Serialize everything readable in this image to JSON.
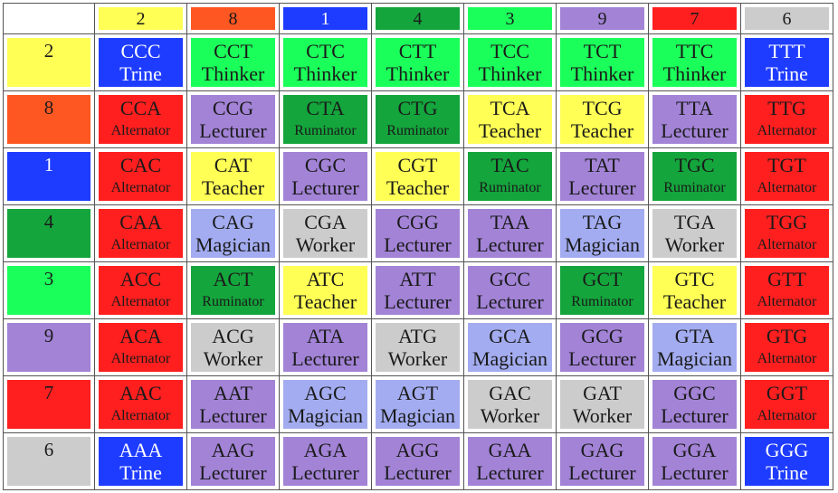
{
  "colors": {
    "yellow": "#ffff55",
    "orange": "#ff5722",
    "blue": "#1e3cff",
    "green": "#14a53c",
    "bright_green": "#1aff5a",
    "purple": "#a283d6",
    "red": "#ff1f1f",
    "gray": "#cccccc",
    "lavender": "#a3acf0"
  },
  "columns": [
    {
      "label": "2",
      "color": "yellow"
    },
    {
      "label": "8",
      "color": "orange"
    },
    {
      "label": "1",
      "color": "blue"
    },
    {
      "label": "4",
      "color": "green"
    },
    {
      "label": "3",
      "color": "bright_green"
    },
    {
      "label": "9",
      "color": "purple"
    },
    {
      "label": "7",
      "color": "red"
    },
    {
      "label": "6",
      "color": "gray"
    }
  ],
  "rows": [
    {
      "label": "2",
      "color": "yellow",
      "cells": [
        {
          "codon": "CCC",
          "role": "Trine",
          "color": "blue"
        },
        {
          "codon": "CCT",
          "role": "Thinker",
          "color": "bright_green"
        },
        {
          "codon": "CTC",
          "role": "Thinker",
          "color": "bright_green"
        },
        {
          "codon": "CTT",
          "role": "Thinker",
          "color": "bright_green"
        },
        {
          "codon": "TCC",
          "role": "Thinker",
          "color": "bright_green"
        },
        {
          "codon": "TCT",
          "role": "Thinker",
          "color": "bright_green"
        },
        {
          "codon": "TTC",
          "role": "Thinker",
          "color": "bright_green"
        },
        {
          "codon": "TTT",
          "role": "Trine",
          "color": "blue"
        }
      ]
    },
    {
      "label": "8",
      "color": "orange",
      "cells": [
        {
          "codon": "CCA",
          "role": "Alternator",
          "color": "red"
        },
        {
          "codon": "CCG",
          "role": "Lecturer",
          "color": "purple"
        },
        {
          "codon": "CTA",
          "role": "Ruminator",
          "color": "green"
        },
        {
          "codon": "CTG",
          "role": "Ruminator",
          "color": "green"
        },
        {
          "codon": "TCA",
          "role": "Teacher",
          "color": "yellow"
        },
        {
          "codon": "TCG",
          "role": "Teacher",
          "color": "yellow"
        },
        {
          "codon": "TTA",
          "role": "Lecturer",
          "color": "purple"
        },
        {
          "codon": "TTG",
          "role": "Alternator",
          "color": "red"
        }
      ]
    },
    {
      "label": "1",
      "color": "blue",
      "cells": [
        {
          "codon": "CAC",
          "role": "Alternator",
          "color": "red"
        },
        {
          "codon": "CAT",
          "role": "Teacher",
          "color": "yellow"
        },
        {
          "codon": "CGC",
          "role": "Lecturer",
          "color": "purple"
        },
        {
          "codon": "CGT",
          "role": "Teacher",
          "color": "yellow"
        },
        {
          "codon": "TAC",
          "role": "Ruminator",
          "color": "green"
        },
        {
          "codon": "TAT",
          "role": "Lecturer",
          "color": "purple"
        },
        {
          "codon": "TGC",
          "role": "Ruminator",
          "color": "green"
        },
        {
          "codon": "TGT",
          "role": "Alternator",
          "color": "red"
        }
      ]
    },
    {
      "label": "4",
      "color": "green",
      "cells": [
        {
          "codon": "CAA",
          "role": "Alternator",
          "color": "red"
        },
        {
          "codon": "CAG",
          "role": "Magician",
          "color": "lavender"
        },
        {
          "codon": "CGA",
          "role": "Worker",
          "color": "gray"
        },
        {
          "codon": "CGG",
          "role": "Lecturer",
          "color": "purple"
        },
        {
          "codon": "TAA",
          "role": "Lecturer",
          "color": "purple"
        },
        {
          "codon": "TAG",
          "role": "Magician",
          "color": "lavender"
        },
        {
          "codon": "TGA",
          "role": "Worker",
          "color": "gray"
        },
        {
          "codon": "TGG",
          "role": "Alternator",
          "color": "red"
        }
      ]
    },
    {
      "label": "3",
      "color": "bright_green",
      "cells": [
        {
          "codon": "ACC",
          "role": "Alternator",
          "color": "red"
        },
        {
          "codon": "ACT",
          "role": "Ruminator",
          "color": "green"
        },
        {
          "codon": "ATC",
          "role": "Teacher",
          "color": "yellow"
        },
        {
          "codon": "ATT",
          "role": "Lecturer",
          "color": "purple"
        },
        {
          "codon": "GCC",
          "role": "Lecturer",
          "color": "purple"
        },
        {
          "codon": "GCT",
          "role": "Ruminator",
          "color": "green"
        },
        {
          "codon": "GTC",
          "role": "Teacher",
          "color": "yellow"
        },
        {
          "codon": "GTT",
          "role": "Alternator",
          "color": "red"
        }
      ]
    },
    {
      "label": "9",
      "color": "purple",
      "cells": [
        {
          "codon": "ACA",
          "role": "Alternator",
          "color": "red"
        },
        {
          "codon": "ACG",
          "role": "Worker",
          "color": "gray"
        },
        {
          "codon": "ATA",
          "role": "Lecturer",
          "color": "purple"
        },
        {
          "codon": "ATG",
          "role": "Worker",
          "color": "gray"
        },
        {
          "codon": "GCA",
          "role": "Magician",
          "color": "lavender"
        },
        {
          "codon": "GCG",
          "role": "Lecturer",
          "color": "purple"
        },
        {
          "codon": "GTA",
          "role": "Magician",
          "color": "lavender"
        },
        {
          "codon": "GTG",
          "role": "Alternator",
          "color": "red"
        }
      ]
    },
    {
      "label": "7",
      "color": "red",
      "cells": [
        {
          "codon": "AAC",
          "role": "Alternator",
          "color": "red"
        },
        {
          "codon": "AAT",
          "role": "Lecturer",
          "color": "purple"
        },
        {
          "codon": "AGC",
          "role": "Magician",
          "color": "lavender"
        },
        {
          "codon": "AGT",
          "role": "Magician",
          "color": "lavender"
        },
        {
          "codon": "GAC",
          "role": "Worker",
          "color": "gray"
        },
        {
          "codon": "GAT",
          "role": "Worker",
          "color": "gray"
        },
        {
          "codon": "GGC",
          "role": "Lecturer",
          "color": "purple"
        },
        {
          "codon": "GGT",
          "role": "Alternator",
          "color": "red"
        }
      ]
    },
    {
      "label": "6",
      "color": "gray",
      "cells": [
        {
          "codon": "AAA",
          "role": "Trine",
          "color": "blue"
        },
        {
          "codon": "AAG",
          "role": "Lecturer",
          "color": "purple"
        },
        {
          "codon": "AGA",
          "role": "Lecturer",
          "color": "purple"
        },
        {
          "codon": "AGG",
          "role": "Lecturer",
          "color": "purple"
        },
        {
          "codon": "GAA",
          "role": "Lecturer",
          "color": "purple"
        },
        {
          "codon": "GAG",
          "role": "Lecturer",
          "color": "purple"
        },
        {
          "codon": "GGA",
          "role": "Lecturer",
          "color": "purple"
        },
        {
          "codon": "GGG",
          "role": "Trine",
          "color": "blue"
        }
      ]
    }
  ]
}
